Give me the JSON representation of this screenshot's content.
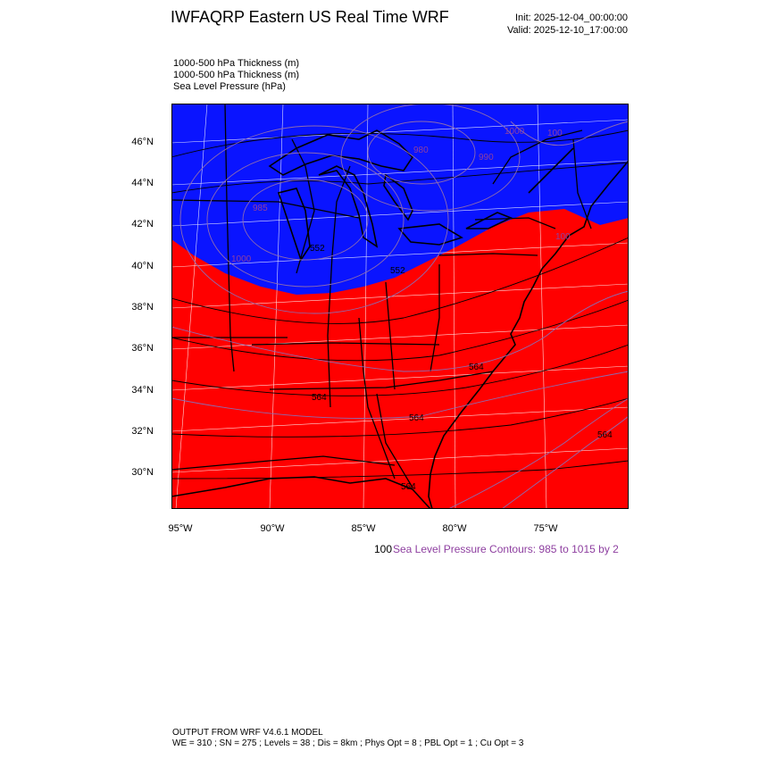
{
  "header": {
    "title": "IWFAQRP Eastern US Real Time WRF",
    "init": "Init: 2025-12-04_00:00:00",
    "valid": "Valid: 2025-12-10_17:00:00"
  },
  "fields": [
    "1000-500 hPa Thickness   (m)",
    "1000-500 hPa Thickness   (m)",
    "Sea Level Pressure   (hPa)"
  ],
  "axes": {
    "lat_labels": [
      "46°N",
      "44°N",
      "42°N",
      "40°N",
      "38°N",
      "36°N",
      "34°N",
      "32°N",
      "30°N"
    ],
    "lon_labels": [
      "95°W",
      "90°W",
      "85°W",
      "80°W",
      "75°W"
    ]
  },
  "contour_labels": {
    "slp": [
      "1000",
      "100",
      "980",
      "990",
      "985",
      "1000",
      "100"
    ],
    "thickness": [
      "552",
      "552",
      "564",
      "564",
      "564",
      "564",
      "564"
    ]
  },
  "colors": {
    "cold_fill": "#0a14ff",
    "warm_fill": "#ff0000",
    "slp_contour": "#8d6bb0",
    "thickness_contour": "#000000",
    "label_purple": "#8e3fa0"
  },
  "contour_info": {
    "scale": "100",
    "note": "Sea Level Pressure Contours: 985 to 1015 by 2"
  },
  "footer": {
    "line1": "OUTPUT FROM WRF V4.6.1 MODEL",
    "line2": "WE = 310 ; SN = 275 ; Levels = 38 ; Dis = 8km ; Phys Opt = 8 ; PBL Opt = 1 ; Cu Opt = 3"
  }
}
